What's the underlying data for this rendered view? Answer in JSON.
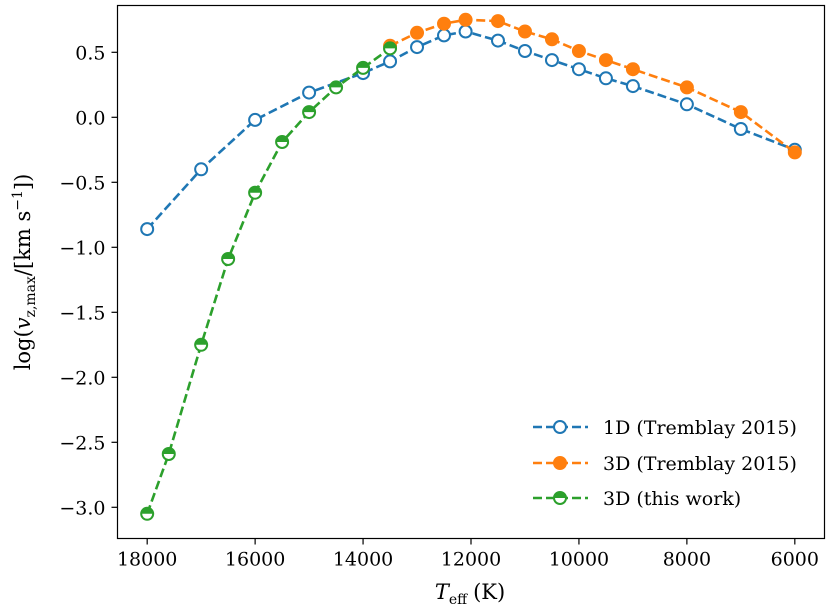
{
  "chart_data": {
    "type": "line",
    "title": "",
    "xlabel": "T_eff (K)",
    "xlabel_main": "T",
    "xlabel_sub": "eff",
    "xlabel_unit": "(K)",
    "ylabel": "log(v_z,max/[km s^-1])",
    "ylabel_prefix": "log(",
    "ylabel_var": "v",
    "ylabel_sub": "z,max",
    "ylabel_unit_open": "/[km s",
    "ylabel_sup": "−1",
    "ylabel_close": "])",
    "xlim": [
      18550,
      5450
    ],
    "ylim": [
      -3.24,
      0.86
    ],
    "x_inverted": true,
    "xticks": [
      18000,
      16000,
      14000,
      12000,
      10000,
      8000,
      6000
    ],
    "xtick_labels": [
      "18000",
      "16000",
      "14000",
      "12000",
      "10000",
      "8000",
      "6000"
    ],
    "yticks": [
      0.5,
      0.0,
      -0.5,
      -1.0,
      -1.5,
      -2.0,
      -2.5,
      -3.0
    ],
    "ytick_labels": [
      "0.5",
      "0.0",
      "−0.5",
      "−1.0",
      "−1.5",
      "−2.0",
      "−2.5",
      "−3.0"
    ],
    "grid": false,
    "legend_position": "lower-right",
    "series": [
      {
        "name": "1D (Tremblay 2015)",
        "color": "#1f77b4",
        "marker": "open-circle",
        "x": [
          18000,
          17000,
          16000,
          15000,
          14000,
          13500,
          13000,
          12500,
          12100,
          11500,
          11000,
          10500,
          10000,
          9500,
          9000,
          8000,
          7000,
          6000
        ],
        "y": [
          -0.86,
          -0.4,
          -0.02,
          0.19,
          0.34,
          0.43,
          0.54,
          0.63,
          0.66,
          0.59,
          0.51,
          0.44,
          0.37,
          0.3,
          0.24,
          0.1,
          -0.09,
          -0.25
        ]
      },
      {
        "name": "3D (Tremblay 2015)",
        "color": "#ff7f0e",
        "marker": "filled-circle",
        "x": [
          13500,
          13000,
          12500,
          12100,
          11500,
          11000,
          10500,
          10000,
          9500,
          9000,
          8000,
          7000,
          6000
        ],
        "y": [
          0.55,
          0.65,
          0.72,
          0.75,
          0.74,
          0.66,
          0.6,
          0.51,
          0.44,
          0.37,
          0.23,
          0.04,
          -0.27
        ]
      },
      {
        "name": "3D (this work)",
        "color": "#2ca02c",
        "marker": "half-filled-circle",
        "x": [
          18000,
          17600,
          17000,
          16500,
          16000,
          15500,
          15000,
          14500,
          14000,
          13500
        ],
        "y": [
          -3.05,
          -2.59,
          -1.75,
          -1.09,
          -0.58,
          -0.19,
          0.04,
          0.23,
          0.38,
          0.53
        ]
      }
    ]
  }
}
